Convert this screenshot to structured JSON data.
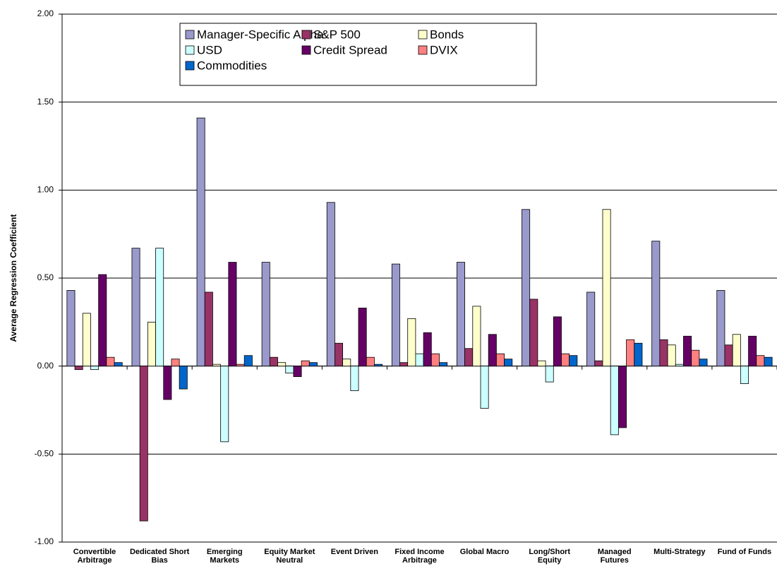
{
  "chart_data": {
    "type": "bar",
    "y_label": "Average Regression Coefficient",
    "categories": [
      "Convertible Arbitrage",
      "Dedicated Short Bias",
      "Emerging Markets",
      "Equity Market Neutral",
      "Event Driven",
      "Fixed Income Arbitrage",
      "Global Macro",
      "Long/Short Equity",
      "Managed Futures",
      "Multi-Strategy",
      "Fund of Funds"
    ],
    "series": [
      {
        "name": "Manager-Specific Alpha",
        "color": "#9999cc",
        "values": [
          0.43,
          0.67,
          1.41,
          0.59,
          0.93,
          0.58,
          0.59,
          0.89,
          0.42,
          0.71,
          0.43
        ]
      },
      {
        "name": "S&P 500",
        "color": "#993366",
        "values": [
          -0.02,
          -0.88,
          0.42,
          0.05,
          0.13,
          0.02,
          0.1,
          0.38,
          0.03,
          0.15,
          0.12
        ]
      },
      {
        "name": "Bonds",
        "color": "#ffffcc",
        "values": [
          0.3,
          0.25,
          0.01,
          0.02,
          0.04,
          0.27,
          0.34,
          0.03,
          0.89,
          0.12,
          0.18
        ]
      },
      {
        "name": "USD",
        "color": "#ccffff",
        "values": [
          -0.02,
          0.67,
          -0.43,
          -0.04,
          -0.14,
          0.07,
          -0.24,
          -0.09,
          -0.39,
          0.01,
          -0.1
        ]
      },
      {
        "name": "Credit Spread",
        "color": "#660066",
        "values": [
          0.52,
          -0.19,
          0.59,
          -0.06,
          0.33,
          0.19,
          0.18,
          0.28,
          -0.35,
          0.17,
          0.17
        ]
      },
      {
        "name": "DVIX",
        "color": "#ff8080",
        "values": [
          0.05,
          0.04,
          0.01,
          0.03,
          0.05,
          0.07,
          0.07,
          0.07,
          0.15,
          0.09,
          0.06
        ]
      },
      {
        "name": "Commodities",
        "color": "#0066cc",
        "values": [
          0.02,
          -0.13,
          0.06,
          0.02,
          0.01,
          0.02,
          0.04,
          0.06,
          0.13,
          0.04,
          0.05
        ]
      }
    ],
    "ylim": [
      -1,
      2
    ],
    "yticks": [
      {
        "value": -1,
        "label": "-1.00"
      },
      {
        "value": -0.5,
        "label": "-0.50"
      },
      {
        "value": 0,
        "label": "0.00"
      },
      {
        "value": 0.5,
        "label": "0.50"
      },
      {
        "value": 1,
        "label": "1.00"
      },
      {
        "value": 1.5,
        "label": "1.50"
      },
      {
        "value": 2,
        "label": "2.00"
      }
    ],
    "grid": true,
    "legend": "top"
  }
}
